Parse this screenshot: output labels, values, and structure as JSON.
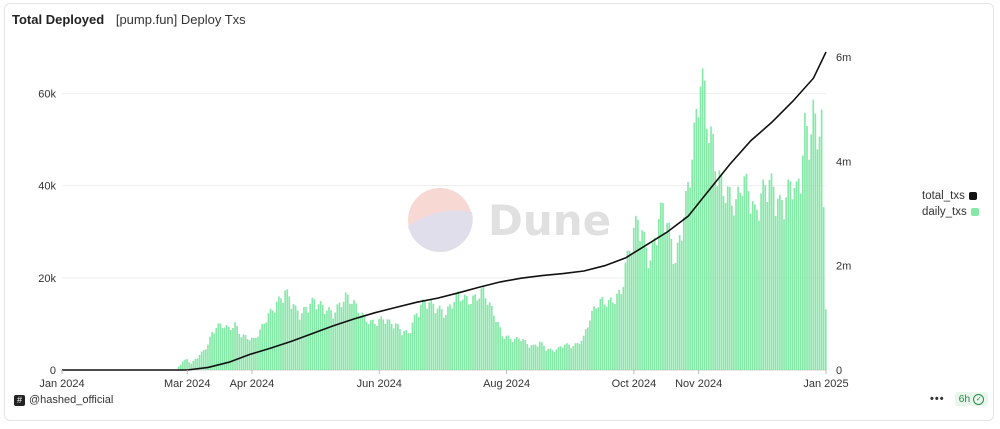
{
  "header": {
    "title": "Total Deployed",
    "subtitle": "[pump.fun] Deploy Txs"
  },
  "watermark": {
    "text": "Dune"
  },
  "footer": {
    "handle": "@hashed_official",
    "logo_glyph": "#",
    "more": "•••",
    "refresh": "6h",
    "refresh_icon": "check-circle-icon"
  },
  "colors": {
    "bar": "#86e8a8",
    "line": "#111111",
    "grid": "#eeeeee",
    "axis_text": "#333333"
  },
  "chart_data": {
    "type": "bar",
    "secondary_type": "line",
    "x_ticks": [
      "Jan 2024",
      "Mar 2024",
      "Apr 2024",
      "Jun 2024",
      "Aug 2024",
      "Oct 2024",
      "Nov 2024",
      "Jan 2025"
    ],
    "x_tick_positions_day": [
      0,
      60,
      91,
      152,
      213,
      274,
      305,
      366
    ],
    "x_range_days": [
      0,
      366
    ],
    "y_left": {
      "ticks": [
        "0",
        "20k",
        "40k",
        "60k"
      ],
      "tick_values": [
        0,
        20000,
        40000,
        60000
      ],
      "range": [
        0,
        69000
      ]
    },
    "y_right": {
      "ticks": [
        "0",
        "2m",
        "4m",
        "6m"
      ],
      "tick_values": [
        0,
        2000000,
        4000000,
        6000000
      ],
      "range": [
        0,
        6100000
      ]
    },
    "legend": [
      {
        "name": "total_txs",
        "color": "#111111"
      },
      {
        "name": "daily_txs",
        "color": "#86e8a8"
      }
    ],
    "legend_position": "right",
    "series": [
      {
        "name": "daily_txs",
        "axis": "left",
        "points": [
          [
            0,
            0
          ],
          [
            55,
            0
          ],
          [
            56,
            800
          ],
          [
            58,
            2000
          ],
          [
            60,
            2500
          ],
          [
            62,
            1500
          ],
          [
            65,
            3000
          ],
          [
            68,
            4500
          ],
          [
            70,
            6000
          ],
          [
            72,
            8500
          ],
          [
            74,
            10000
          ],
          [
            77,
            10500
          ],
          [
            80,
            9500
          ],
          [
            83,
            10500
          ],
          [
            86,
            8000
          ],
          [
            89,
            7500
          ],
          [
            92,
            7000
          ],
          [
            95,
            9000
          ],
          [
            98,
            12000
          ],
          [
            101,
            14000
          ],
          [
            104,
            16000
          ],
          [
            107,
            18000
          ],
          [
            109,
            17000
          ],
          [
            112,
            14000
          ],
          [
            115,
            13000
          ],
          [
            118,
            15000
          ],
          [
            121,
            16000
          ],
          [
            124,
            15000
          ],
          [
            127,
            14000
          ],
          [
            130,
            13000
          ],
          [
            133,
            15000
          ],
          [
            136,
            17000
          ],
          [
            139,
            16000
          ],
          [
            142,
            14000
          ],
          [
            145,
            12000
          ],
          [
            148,
            11000
          ],
          [
            151,
            11000
          ],
          [
            154,
            12000
          ],
          [
            157,
            11000
          ],
          [
            160,
            10500
          ],
          [
            163,
            9000
          ],
          [
            166,
            8500
          ],
          [
            169,
            12000
          ],
          [
            172,
            15000
          ],
          [
            175,
            16000
          ],
          [
            178,
            15000
          ],
          [
            181,
            14000
          ],
          [
            184,
            13000
          ],
          [
            187,
            15500
          ],
          [
            190,
            17500
          ],
          [
            193,
            16500
          ],
          [
            196,
            16000
          ],
          [
            199,
            17000
          ],
          [
            202,
            18500
          ],
          [
            205,
            15000
          ],
          [
            208,
            12000
          ],
          [
            211,
            8000
          ],
          [
            214,
            7500
          ],
          [
            217,
            7000
          ],
          [
            220,
            7500
          ],
          [
            223,
            6000
          ],
          [
            226,
            5500
          ],
          [
            229,
            6500
          ],
          [
            232,
            5000
          ],
          [
            235,
            4500
          ],
          [
            238,
            5000
          ],
          [
            241,
            6000
          ],
          [
            244,
            5500
          ],
          [
            247,
            6000
          ],
          [
            250,
            7500
          ],
          [
            253,
            12000
          ],
          [
            256,
            15000
          ],
          [
            259,
            16000
          ],
          [
            262,
            15500
          ],
          [
            265,
            16500
          ],
          [
            268,
            18000
          ],
          [
            270,
            24000
          ],
          [
            272,
            28000
          ],
          [
            274,
            32000
          ],
          [
            276,
            35000
          ],
          [
            279,
            30000
          ],
          [
            282,
            25000
          ],
          [
            285,
            33000
          ],
          [
            288,
            38000
          ],
          [
            291,
            32000
          ],
          [
            294,
            25000
          ],
          [
            297,
            33000
          ],
          [
            300,
            42000
          ],
          [
            302,
            50000
          ],
          [
            304,
            58000
          ],
          [
            306,
            68000
          ],
          [
            308,
            64000
          ],
          [
            310,
            55000
          ],
          [
            312,
            52000
          ],
          [
            314,
            45000
          ],
          [
            317,
            42000
          ],
          [
            320,
            40000
          ],
          [
            323,
            38000
          ],
          [
            326,
            44000
          ],
          [
            329,
            42000
          ],
          [
            332,
            36000
          ],
          [
            335,
            40000
          ],
          [
            338,
            44000
          ],
          [
            341,
            42000
          ],
          [
            344,
            38000
          ],
          [
            347,
            40000
          ],
          [
            350,
            44000
          ],
          [
            352,
            41000
          ],
          [
            354,
            45000
          ],
          [
            356,
            56000
          ],
          [
            358,
            53000
          ],
          [
            360,
            59000
          ],
          [
            362,
            55000
          ],
          [
            364,
            57000
          ],
          [
            366,
            15000
          ]
        ]
      },
      {
        "name": "total_txs",
        "axis": "right",
        "points": [
          [
            0,
            0
          ],
          [
            60,
            0
          ],
          [
            70,
            50000
          ],
          [
            80,
            150000
          ],
          [
            90,
            300000
          ],
          [
            100,
            420000
          ],
          [
            110,
            550000
          ],
          [
            120,
            700000
          ],
          [
            130,
            850000
          ],
          [
            140,
            980000
          ],
          [
            150,
            1100000
          ],
          [
            160,
            1200000
          ],
          [
            170,
            1300000
          ],
          [
            180,
            1380000
          ],
          [
            190,
            1480000
          ],
          [
            200,
            1590000
          ],
          [
            210,
            1690000
          ],
          [
            220,
            1760000
          ],
          [
            230,
            1810000
          ],
          [
            240,
            1850000
          ],
          [
            250,
            1900000
          ],
          [
            260,
            2000000
          ],
          [
            270,
            2150000
          ],
          [
            280,
            2400000
          ],
          [
            290,
            2650000
          ],
          [
            300,
            2950000
          ],
          [
            310,
            3450000
          ],
          [
            320,
            3950000
          ],
          [
            330,
            4400000
          ],
          [
            340,
            4750000
          ],
          [
            350,
            5150000
          ],
          [
            360,
            5600000
          ],
          [
            366,
            6100000
          ]
        ]
      }
    ]
  }
}
